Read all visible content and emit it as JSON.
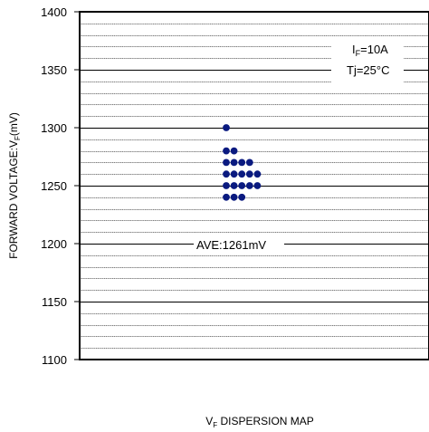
{
  "chart_data": {
    "type": "scatter",
    "title": "",
    "ylabel": {
      "prefix": "FORWARD VOLTAGE:V",
      "sub": "F",
      "suffix": "(mV)"
    },
    "xlabel": {
      "prefix": "V",
      "sub": "F",
      "suffix": " DISPERSION MAP"
    },
    "ylim": [
      1100,
      1400
    ],
    "y_ticks": [
      "1400",
      "1350",
      "1300",
      "1250",
      "1200",
      "1150",
      "1100"
    ],
    "y_tick_values": [
      1400,
      1350,
      1300,
      1250,
      1200,
      1150,
      1100
    ],
    "minor_gridline_step": 10,
    "grid": true,
    "marker_color": "#0a1a80",
    "points": [
      {
        "value": 1300,
        "count": 1
      },
      {
        "value": 1280,
        "count": 2
      },
      {
        "value": 1270,
        "count": 4
      },
      {
        "value": 1260,
        "count": 5
      },
      {
        "value": 1250,
        "count": 5
      },
      {
        "value": 1240,
        "count": 3
      }
    ],
    "average_label": "AVE:1261mV",
    "average_label_y": 1200,
    "conditions": {
      "line1": {
        "prefix": "I",
        "sub": "F",
        "suffix": "=10A"
      },
      "line2": "Tj=25°C"
    }
  }
}
